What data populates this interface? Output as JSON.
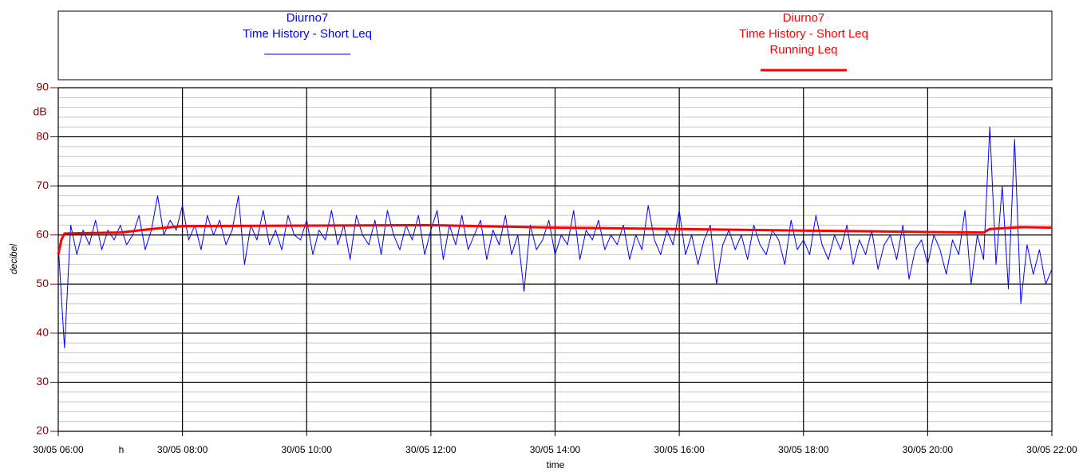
{
  "chart_data": {
    "type": "line",
    "xlabel": "time",
    "xunit": "h",
    "ylabel": "decibel",
    "yunit": "dB",
    "xlim": [
      6,
      22
    ],
    "xticks": [
      {
        "value": 6,
        "label": "30/05 06:00"
      },
      {
        "value": 8,
        "label": "30/05 08:00"
      },
      {
        "value": 10,
        "label": "30/05 10:00"
      },
      {
        "value": 12,
        "label": "30/05 12:00"
      },
      {
        "value": 14,
        "label": "30/05 14:00"
      },
      {
        "value": 16,
        "label": "30/05 16:00"
      },
      {
        "value": 18,
        "label": "30/05 18:00"
      },
      {
        "value": 20,
        "label": "30/05 20:00"
      },
      {
        "value": 22,
        "label": "30/05 22:00"
      }
    ],
    "ylim": [
      20,
      90
    ],
    "yticks": [
      20,
      30,
      40,
      50,
      60,
      70,
      80,
      90
    ],
    "yminor": [
      22,
      24,
      26,
      28,
      32,
      34,
      36,
      38,
      42,
      44,
      46,
      48,
      52,
      54,
      56,
      58,
      62,
      64,
      66,
      68,
      72,
      74,
      76,
      78,
      82,
      84,
      86,
      88
    ],
    "grid": true,
    "series": [
      {
        "name": "Diurno7",
        "legend": [
          "Diurno7",
          "Time History - Short Leq"
        ],
        "color": "#0000ff",
        "width": 1,
        "x": [
          6,
          6.1,
          6.2,
          6.3,
          6.4,
          6.5,
          6.6,
          6.7,
          6.8,
          6.9,
          7,
          7.1,
          7.2,
          7.3,
          7.4,
          7.5,
          7.6,
          7.7,
          7.8,
          7.9,
          8,
          8.1,
          8.2,
          8.3,
          8.4,
          8.5,
          8.6,
          8.7,
          8.8,
          8.9,
          9,
          9.1,
          9.2,
          9.3,
          9.4,
          9.5,
          9.6,
          9.7,
          9.8,
          9.9,
          10,
          10.1,
          10.2,
          10.3,
          10.4,
          10.5,
          10.6,
          10.7,
          10.8,
          10.9,
          11,
          11.1,
          11.2,
          11.3,
          11.4,
          11.5,
          11.6,
          11.7,
          11.8,
          11.9,
          12,
          12.1,
          12.2,
          12.3,
          12.4,
          12.5,
          12.6,
          12.7,
          12.8,
          12.9,
          13,
          13.1,
          13.2,
          13.3,
          13.4,
          13.5,
          13.6,
          13.7,
          13.8,
          13.9,
          14,
          14.1,
          14.2,
          14.3,
          14.4,
          14.5,
          14.6,
          14.7,
          14.8,
          14.9,
          15,
          15.1,
          15.2,
          15.3,
          15.4,
          15.5,
          15.6,
          15.7,
          15.8,
          15.9,
          16,
          16.1,
          16.2,
          16.3,
          16.4,
          16.5,
          16.6,
          16.7,
          16.8,
          16.9,
          17,
          17.1,
          17.2,
          17.3,
          17.4,
          17.5,
          17.6,
          17.7,
          17.8,
          17.9,
          18,
          18.1,
          18.2,
          18.3,
          18.4,
          18.5,
          18.6,
          18.7,
          18.8,
          18.9,
          19,
          19.1,
          19.2,
          19.3,
          19.4,
          19.5,
          19.6,
          19.7,
          19.8,
          19.9,
          20,
          20.1,
          20.2,
          20.3,
          20.4,
          20.5,
          20.6,
          20.7,
          20.8,
          20.9,
          21,
          21.1,
          21.2,
          21.3,
          21.4,
          21.5,
          21.6,
          21.7,
          21.8,
          21.9,
          22
        ],
        "values": [
          58,
          37,
          62,
          56,
          61,
          58,
          63,
          57,
          61,
          59,
          62,
          58,
          60,
          64,
          57,
          61,
          68,
          60,
          63,
          61,
          66,
          59,
          62,
          57,
          64,
          60,
          63,
          58,
          61,
          68,
          54,
          62,
          59,
          65,
          58,
          61,
          57,
          64,
          60,
          59,
          63,
          56,
          61,
          59,
          65,
          58,
          62,
          55,
          64,
          60,
          58,
          63,
          56,
          65,
          60,
          57,
          62,
          59,
          64,
          56,
          61,
          65,
          55,
          62,
          58,
          64,
          57,
          60,
          63,
          55,
          61,
          58,
          64,
          56,
          60,
          48.5,
          62,
          57,
          59,
          63,
          56,
          60,
          58,
          65,
          55,
          61,
          59,
          63,
          57,
          60,
          58,
          62,
          55,
          60,
          57,
          66,
          59,
          56,
          61,
          58,
          65,
          56,
          60,
          54,
          59,
          62,
          50,
          58,
          61,
          57,
          60,
          55,
          62,
          58,
          56,
          61,
          59,
          54,
          63,
          57,
          59,
          56,
          64,
          58,
          55,
          60,
          57,
          62,
          54,
          59,
          56,
          61,
          53,
          58,
          60,
          55,
          62,
          51,
          57,
          59,
          54,
          60,
          57,
          52,
          59,
          56,
          65,
          50,
          60,
          55,
          82,
          54,
          70,
          49,
          79.5,
          46,
          58,
          52,
          57,
          50,
          53
        ]
      },
      {
        "name": "Diurno7",
        "legend": [
          "Diurno7",
          "Time History - Short Leq",
          "Running Leq"
        ],
        "color": "#ff0000",
        "width": 3,
        "x": [
          6,
          6.05,
          6.1,
          7,
          7.5,
          8,
          10,
          12,
          14,
          16,
          18,
          20,
          20.9,
          21,
          21.5,
          22
        ],
        "values": [
          56,
          59,
          60.3,
          60.5,
          61.2,
          61.8,
          61.9,
          62,
          61.5,
          61.2,
          60.9,
          60.6,
          60.5,
          61.2,
          61.6,
          61.5
        ]
      }
    ]
  }
}
